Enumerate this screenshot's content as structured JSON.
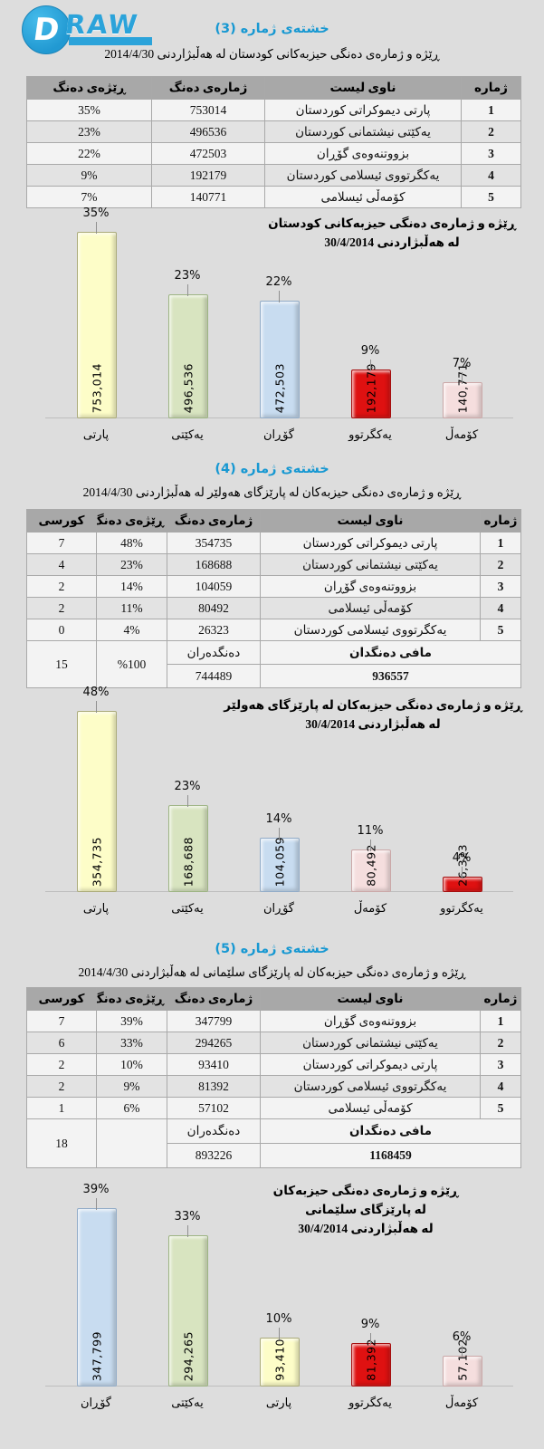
{
  "logo": {
    "mark": "D",
    "text": "RAW",
    "color": "#2BA3DA"
  },
  "sections": [
    {
      "title": "خشتەی ژمارە (3)",
      "subtitle": "ڕێژە و ژمارەی دەنگی حیزبەکانی کودستان لە هەڵبژاردنی 2014/4/30",
      "headers": {
        "no": "ژمارە",
        "name": "ناوی لیست",
        "votes": "ژمارەی دەنگ",
        "pct": "ڕێژەی دەنگ"
      },
      "rows": [
        {
          "no": "1",
          "name": "پارتی دیموکراتی کوردستان",
          "votes": "753014",
          "pct": "35%"
        },
        {
          "no": "2",
          "name": "یەکێتی نیشتمانی کوردستان",
          "votes": "496536",
          "pct": "23%"
        },
        {
          "no": "3",
          "name": "بزووتنەوەی گۆڕان",
          "votes": "472503",
          "pct": "22%"
        },
        {
          "no": "4",
          "name": "یەکگرتووی ئیسلامی کوردستان",
          "votes": "192179",
          "pct": "9%"
        },
        {
          "no": "5",
          "name": "کۆمەڵی ئیسلامی",
          "votes": "140771",
          "pct": "7%"
        }
      ]
    },
    {
      "title": "خشتەی ژمارە (4)",
      "subtitle": "ڕێژە و ژمارەی دەنگی حیزبەکان لە پارێزگای هەولێر لە هەڵبژاردنی 2014/4/30",
      "headers": {
        "no": "ژمارە",
        "name": "ناوی لیست",
        "votes": "ژمارەی دەنگ",
        "pct": "ڕێژەی دەنگ",
        "seats": "کورسی"
      },
      "rows": [
        {
          "no": "1",
          "name": "پارتی دیموکراتی کوردستان",
          "votes": "354735",
          "pct": "48%",
          "seats": "7"
        },
        {
          "no": "2",
          "name": "یەکێتی نیشتمانی کوردستان",
          "votes": "168688",
          "pct": "23%",
          "seats": "4"
        },
        {
          "no": "3",
          "name": "بزووتنەوەی گۆڕان",
          "votes": "104059",
          "pct": "14%",
          "seats": "2"
        },
        {
          "no": "4",
          "name": "کۆمەڵی ئیسلامی",
          "votes": "80492",
          "pct": "11%",
          "seats": "2"
        },
        {
          "no": "5",
          "name": "یەکگرتووی ئیسلامی کوردستان",
          "votes": "26323",
          "pct": "4%",
          "seats": "0"
        }
      ],
      "footer": {
        "label": "مافی دەنگدان",
        "total": "936557",
        "voters_label": "دەنگدەران",
        "voters": "744489",
        "pct": "%100",
        "seats": "15"
      }
    },
    {
      "title": "خشتەی ژمارە (5)",
      "subtitle": "ڕێژە و ژمارەی دەنگی حیزبەکان لە پارێزگای سلێمانی لە هەڵبژاردنی 2014/4/30",
      "headers": {
        "no": "ژمارە",
        "name": "ناوی لیست",
        "votes": "ژمارەی دەنگ",
        "pct": "ڕێژەی دەنگ",
        "seats": "کورسی"
      },
      "rows": [
        {
          "no": "1",
          "name": "بزووتنەوەی گۆڕان",
          "votes": "347799",
          "pct": "39%",
          "seats": "7"
        },
        {
          "no": "2",
          "name": "یەکێتی نیشتمانی کوردستان",
          "votes": "294265",
          "pct": "33%",
          "seats": "6"
        },
        {
          "no": "3",
          "name": "پارتی دیموکراتی کوردستان",
          "votes": "93410",
          "pct": "10%",
          "seats": "2"
        },
        {
          "no": "4",
          "name": "یەکگرتووی ئیسلامی کوردستان",
          "votes": "81392",
          "pct": "9%",
          "seats": "2"
        },
        {
          "no": "5",
          "name": "کۆمەڵی ئیسلامی",
          "votes": "57102",
          "pct": "6%",
          "seats": "1"
        }
      ],
      "footer": {
        "label": "مافی دەنگدان",
        "total": "1168459",
        "voters_label": "دەنگدەران",
        "voters": "893226",
        "pct": "",
        "seats": "18"
      }
    }
  ],
  "chart_data": [
    {
      "type": "bar",
      "title": "ڕێژە و ژمارەی دەنگی حیزبەکانی کودستان لە هەڵبژاردنی 30/4/2014",
      "title_lines": [
        "ڕێژە و ژمارەی دەنگی حیزبەکانی کودستان",
        "لە هەڵبژاردنی 30/4/2014"
      ],
      "categories": [
        "پارتی",
        "یەکێتی",
        "گۆڕان",
        "یەکگرتوو",
        "کۆمەڵ"
      ],
      "values": [
        753014,
        496536,
        472503,
        192179,
        140771
      ],
      "value_labels": [
        "753,014",
        "496,536",
        "472,503",
        "192,179",
        "140,771"
      ],
      "percents": [
        "35%",
        "23%",
        "22%",
        "9%",
        "7%"
      ],
      "colors": [
        {
          "fill": "#FDFDC8",
          "border": "#ABAB7A"
        },
        {
          "fill": "#D8E4C0",
          "border": "#9DB483"
        },
        {
          "fill": "#C8DCF0",
          "border": "#92ACC8"
        },
        {
          "fill": "#DF1111",
          "border": "#A50F0F"
        },
        {
          "fill": "#F5DEDE",
          "border": "#CBA8A8"
        }
      ],
      "xlabel": "",
      "ylabel": "",
      "grid": false,
      "legend": false
    },
    {
      "type": "bar",
      "title": "ڕێژە و ژمارەی دەنگی حیزبەکان لە پارێزگای هەولێر لە هەڵبژاردنی 30/4/2014",
      "title_lines": [
        "ڕێژە و ژمارەی دەنگی حیزبەکان لە پارێزگای هەولێر",
        "لە هەڵبژاردنی 30/4/2014"
      ],
      "categories": [
        "پارتی",
        "یەکێتی",
        "گۆڕان",
        "کۆمەڵ",
        "یەکگرتوو"
      ],
      "values": [
        354735,
        168688,
        104059,
        80492,
        26323
      ],
      "value_labels": [
        "354,735",
        "168,688",
        "104,059",
        "80,492",
        "26,323"
      ],
      "percents": [
        "48%",
        "23%",
        "14%",
        "11%",
        "4%"
      ],
      "colors": [
        {
          "fill": "#FDFDC8",
          "border": "#ABAB7A"
        },
        {
          "fill": "#D8E4C0",
          "border": "#9DB483"
        },
        {
          "fill": "#C8DCF0",
          "border": "#92ACC8"
        },
        {
          "fill": "#F5DEDE",
          "border": "#CBA8A8"
        },
        {
          "fill": "#DF1111",
          "border": "#A50F0F"
        }
      ],
      "xlabel": "",
      "ylabel": "",
      "grid": false,
      "legend": false
    },
    {
      "type": "bar",
      "title": "ڕێژە و ژمارەی دەنگی حیزبەکان لە پارێزگای سلێمانی لە هەڵبژاردنی 30/4/2014",
      "title_lines": [
        "ڕێژە و ژمارەی دەنگی حیزبەکان",
        "لە پارێزگای سلێمانی",
        "لە هەڵبژاردنی 30/4/2014"
      ],
      "categories": [
        "گۆڕان",
        "یەکێتی",
        "پارتی",
        "یەکگرتوو",
        "کۆمەڵ"
      ],
      "values": [
        347799,
        294265,
        93410,
        81392,
        57102
      ],
      "value_labels": [
        "347,799",
        "294,265",
        "93,410",
        "81,392",
        "57,102"
      ],
      "percents": [
        "39%",
        "33%",
        "10%",
        "9%",
        "6%"
      ],
      "colors": [
        {
          "fill": "#C8DCF0",
          "border": "#92ACC8"
        },
        {
          "fill": "#D8E4C0",
          "border": "#9DB483"
        },
        {
          "fill": "#FDFDC8",
          "border": "#ABAB7A"
        },
        {
          "fill": "#DF1111",
          "border": "#A50F0F"
        },
        {
          "fill": "#F5DEDE",
          "border": "#CBA8A8"
        }
      ],
      "xlabel": "",
      "ylabel": "",
      "grid": false,
      "legend": false
    }
  ]
}
